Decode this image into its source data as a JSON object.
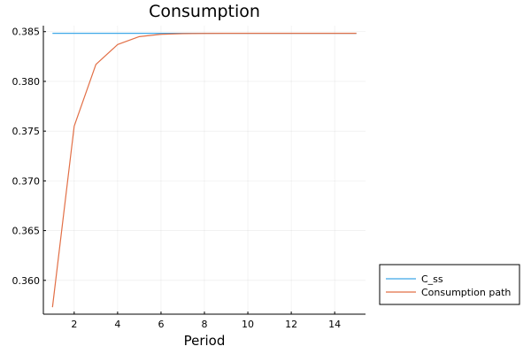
{
  "chart_data": {
    "type": "line",
    "title": "Consumption",
    "xlabel": "Period",
    "ylabel": "",
    "xlim": [
      0.58,
      15.42
    ],
    "ylim": [
      0.3566,
      0.3856
    ],
    "xticks": [
      2,
      4,
      6,
      8,
      10,
      12,
      14
    ],
    "xtick_labels": [
      "2",
      "4",
      "6",
      "8",
      "10",
      "12",
      "14"
    ],
    "yticks": [
      0.36,
      0.365,
      0.37,
      0.375,
      0.38,
      0.385
    ],
    "ytick_labels": [
      "0.360",
      "0.365",
      "0.370",
      "0.375",
      "0.380",
      "0.385"
    ],
    "grid": true,
    "legend_position": "outside-bottom-right",
    "series": [
      {
        "name": "C_ss",
        "color": "#3da8e8",
        "x": [
          1,
          15
        ],
        "y": [
          0.38483,
          0.38483
        ]
      },
      {
        "name": "Consumption path",
        "color": "#e26f46",
        "x": [
          1,
          2,
          3,
          4,
          5,
          6,
          7,
          8,
          9,
          10,
          11,
          12,
          13,
          14,
          15
        ],
        "y": [
          0.3573,
          0.3755,
          0.3817,
          0.3837,
          0.3845,
          0.38473,
          0.3848,
          0.38482,
          0.38483,
          0.38483,
          0.38483,
          0.38483,
          0.38483,
          0.38483,
          0.38483
        ]
      }
    ]
  }
}
